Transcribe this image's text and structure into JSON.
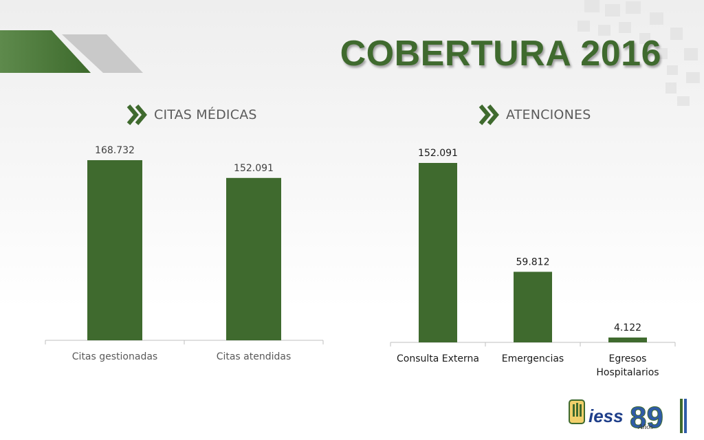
{
  "page": {
    "title": "COBERTURA 2016",
    "accent_color": "#3f6a2e",
    "sections": [
      {
        "label": "CITAS MÉDICAS",
        "icon": "double-chevron-right-icon"
      },
      {
        "label": "ATENCIONES",
        "icon": "double-chevron-right-icon"
      }
    ],
    "logo": {
      "text": "iess",
      "number": "89",
      "suffix": "Años"
    }
  },
  "chart_data": [
    {
      "type": "bar",
      "title": "CITAS MÉDICAS",
      "categories": [
        [
          "Citas gestionadas"
        ],
        [
          "Citas atendidas"
        ]
      ],
      "values": [
        168732,
        152091
      ],
      "value_labels": [
        "168.732",
        "152.091"
      ],
      "ylim": [
        0,
        170000
      ],
      "grid": false,
      "bar_color": "#3f6a2e"
    },
    {
      "type": "bar",
      "title": "ATENCIONES",
      "categories": [
        [
          "Consulta Externa"
        ],
        [
          "Emergencias"
        ],
        [
          "Egresos",
          "Hospitalarios"
        ]
      ],
      "values": [
        152091,
        59812,
        4122
      ],
      "value_labels": [
        "152.091",
        "59.812",
        "4.122"
      ],
      "ylim": [
        0,
        152091
      ],
      "grid": false,
      "bar_color": "#3f6a2e"
    }
  ]
}
